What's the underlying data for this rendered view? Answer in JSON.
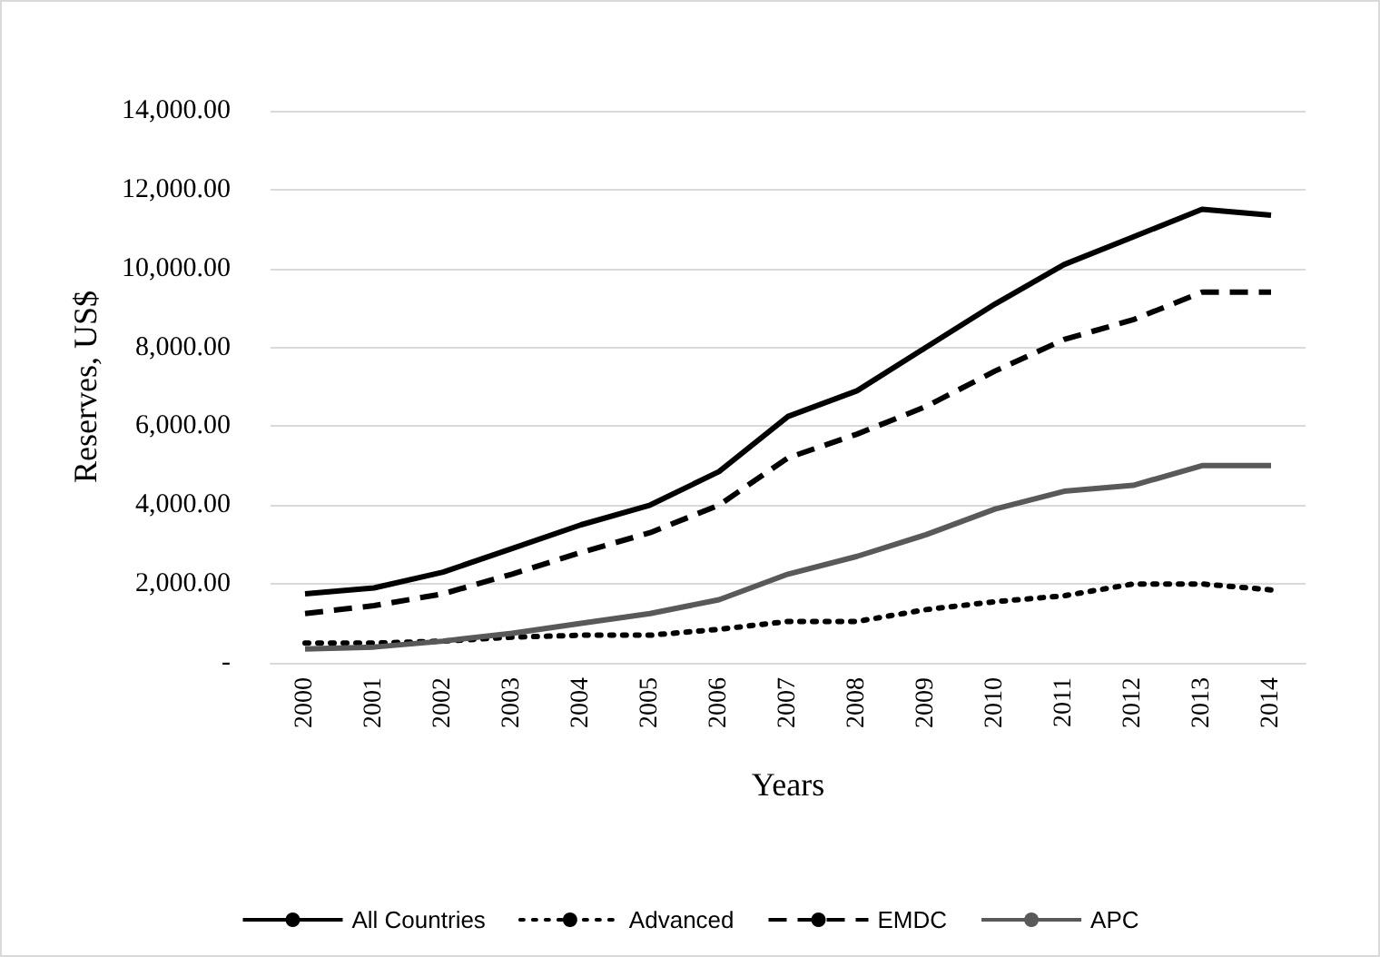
{
  "chart_data": {
    "type": "line",
    "xlabel": "Years",
    "ylabel": "Reserves, US$",
    "categories": [
      "2000",
      "2001",
      "2002",
      "2003",
      "2004",
      "2005",
      "2006",
      "2007",
      "2008",
      "2009",
      "2010",
      "2011",
      "2012",
      "2013",
      "2014"
    ],
    "series": [
      {
        "name": "All Countries",
        "color": "#000000",
        "line_style": "solid",
        "values": [
          1750,
          1900,
          2300,
          2900,
          3500,
          4000,
          4850,
          6250,
          6900,
          8000,
          9100,
          10100,
          10800,
          11500,
          11350
        ]
      },
      {
        "name": "Advanced",
        "color": "#000000",
        "line_style": "dotted",
        "values": [
          500,
          500,
          550,
          650,
          700,
          700,
          850,
          1050,
          1050,
          1350,
          1550,
          1700,
          2000,
          2000,
          1850
        ]
      },
      {
        "name": "EMDC",
        "color": "#000000",
        "line_style": "dashed",
        "values": [
          1250,
          1450,
          1750,
          2250,
          2800,
          3300,
          4000,
          5200,
          5800,
          6500,
          7400,
          8200,
          8700,
          9400,
          9400
        ]
      },
      {
        "name": "APC",
        "color": "#595959",
        "line_style": "solid",
        "values": [
          350,
          400,
          550,
          750,
          1000,
          1250,
          1600,
          2250,
          2700,
          3250,
          3900,
          4350,
          4500,
          5000,
          5000
        ]
      }
    ],
    "ylim": [
      0,
      14000
    ],
    "yticks": [
      {
        "value": 0,
        "label": "-"
      },
      {
        "value": 2000,
        "label": "2,000.00"
      },
      {
        "value": 4000,
        "label": "4,000.00"
      },
      {
        "value": 6000,
        "label": "6,000.00"
      },
      {
        "value": 8000,
        "label": "8,000.00"
      },
      {
        "value": 10000,
        "label": "10,000.00"
      },
      {
        "value": 12000,
        "label": "12,000.00"
      },
      {
        "value": 14000,
        "label": "14,000.00"
      }
    ],
    "grid": "y",
    "legend": "bottom",
    "marker": "none"
  }
}
